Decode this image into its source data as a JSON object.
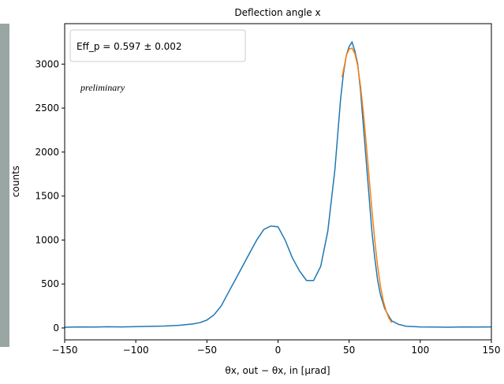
{
  "chart_data": {
    "type": "line",
    "title": "Deflection angle x",
    "xlabel": "θx, out − θx, in [μrad]",
    "ylabel": "counts",
    "annotations": [
      "Eff_p = 0.597 ± 0.002",
      "preliminary"
    ],
    "xlim": [
      -150,
      150
    ],
    "ylim": [
      -135,
      3460
    ],
    "xticks": [
      {
        "value": -150,
        "label": "−150"
      },
      {
        "value": -100,
        "label": "−100"
      },
      {
        "value": -50,
        "label": "−50"
      },
      0,
      50,
      100,
      150
    ],
    "yticks": [
      0,
      500,
      1000,
      1500,
      2000,
      2500,
      3000
    ],
    "grid": false,
    "series": [
      {
        "color": "#1f77b4",
        "x": [
          -150,
          -140,
          -130,
          -120,
          -110,
          -100,
          -90,
          -80,
          -70,
          -60,
          -55,
          -50,
          -45,
          -40,
          -35,
          -30,
          -25,
          -20,
          -15,
          -10,
          -5,
          0,
          5,
          10,
          15,
          20,
          25,
          30,
          35,
          40,
          42,
          44,
          46,
          48,
          50,
          52,
          54,
          56,
          58,
          60,
          62,
          64,
          66,
          68,
          70,
          72,
          75,
          78,
          80,
          85,
          90,
          100,
          110,
          120,
          130,
          140,
          150
        ],
        "values": [
          8,
          12,
          10,
          14,
          12,
          15,
          18,
          22,
          30,
          45,
          60,
          90,
          150,
          250,
          400,
          550,
          700,
          850,
          1000,
          1120,
          1160,
          1150,
          1000,
          800,
          650,
          540,
          540,
          700,
          1100,
          1800,
          2200,
          2600,
          2900,
          3100,
          3200,
          3250,
          3150,
          3000,
          2700,
          2300,
          1900,
          1500,
          1100,
          800,
          550,
          380,
          220,
          130,
          80,
          40,
          20,
          12,
          10,
          8,
          12,
          10,
          12
        ]
      },
      {
        "color": "#ff7f0e",
        "x": [
          45,
          48,
          50,
          52,
          54,
          56,
          58,
          60,
          62,
          64,
          66,
          68,
          70,
          72,
          74,
          76,
          78,
          80
        ],
        "values": [
          2850,
          3100,
          3170,
          3180,
          3120,
          2980,
          2750,
          2450,
          2100,
          1720,
          1350,
          1000,
          710,
          480,
          310,
          190,
          110,
          60
        ]
      }
    ]
  }
}
